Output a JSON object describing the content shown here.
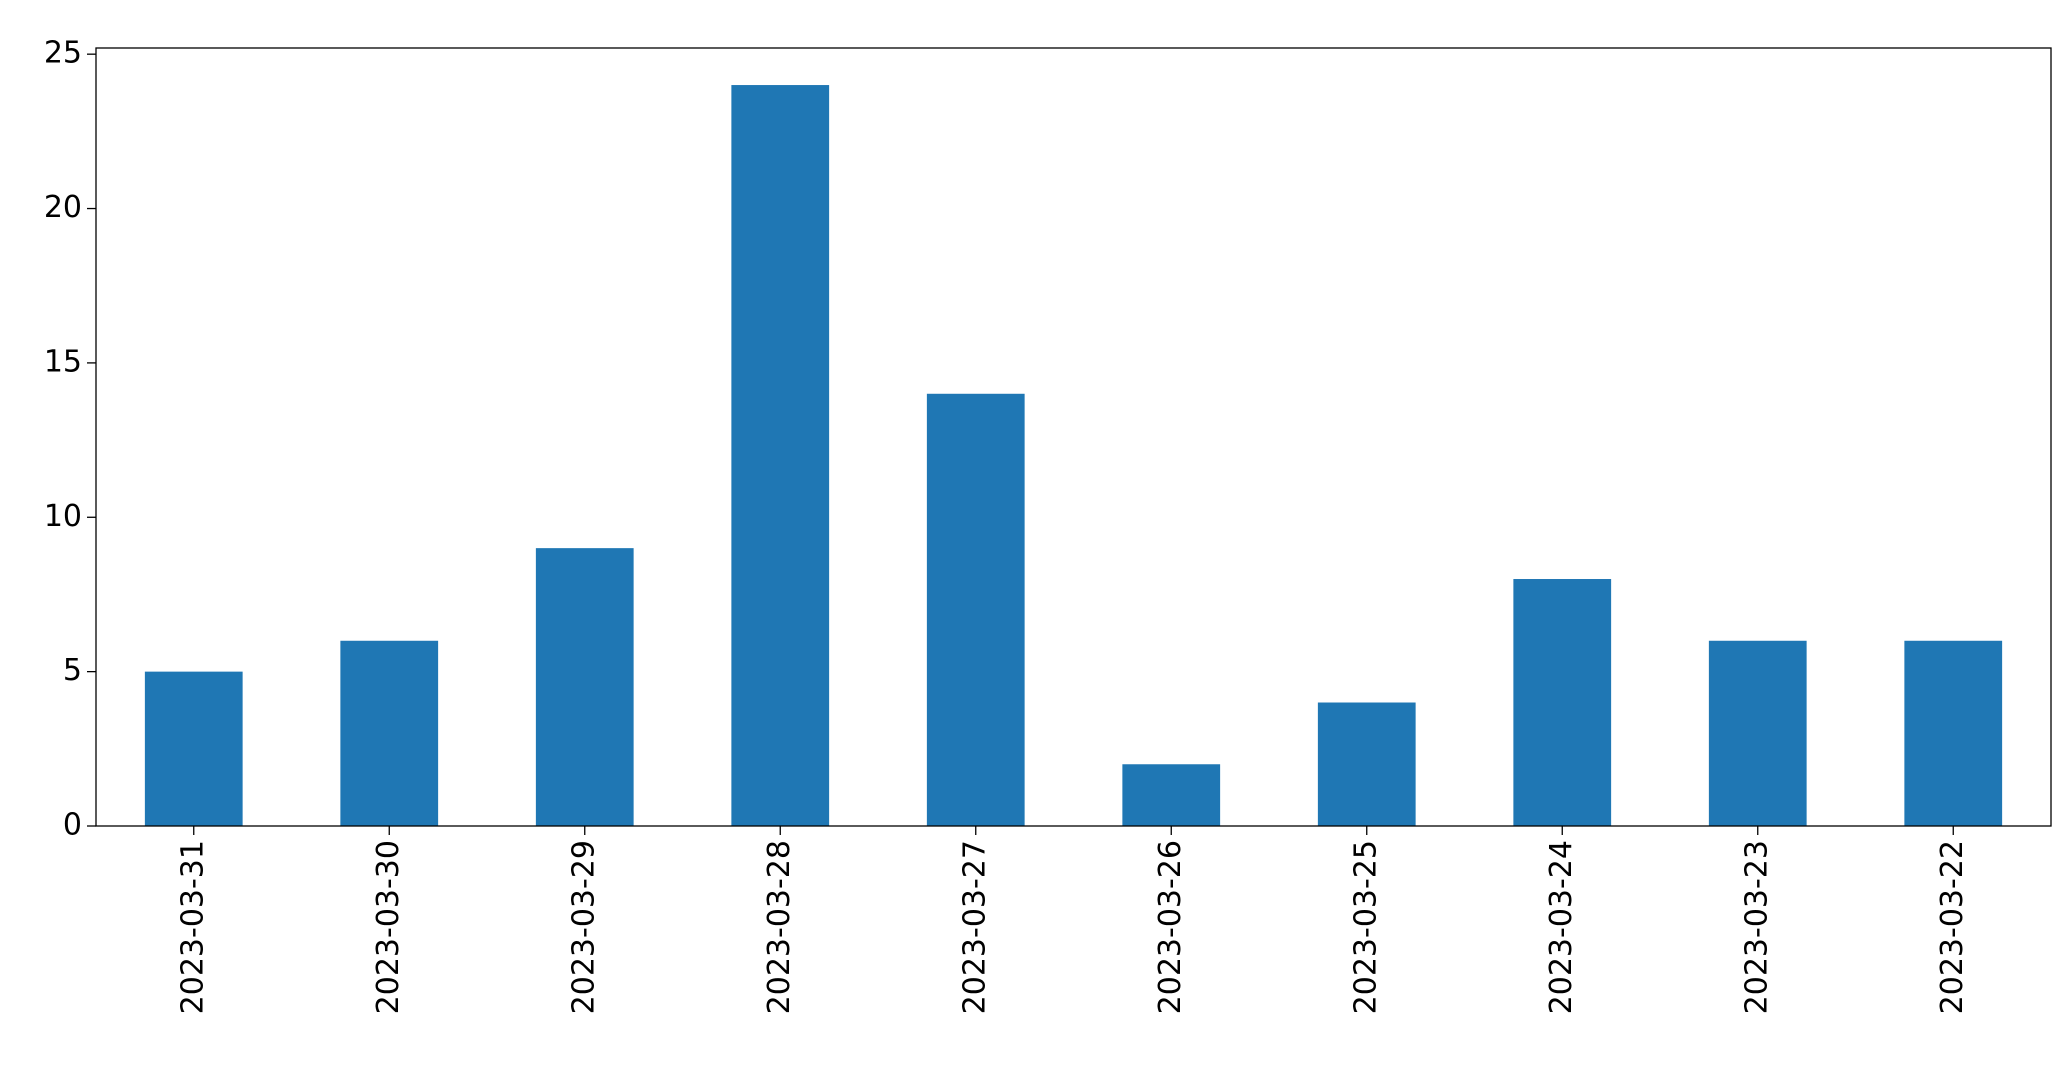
{
  "chart_data": {
    "type": "bar",
    "categories": [
      "2023-03-31",
      "2023-03-30",
      "2023-03-29",
      "2023-03-28",
      "2023-03-27",
      "2023-03-26",
      "2023-03-25",
      "2023-03-24",
      "2023-03-23",
      "2023-03-22"
    ],
    "values": [
      5,
      6,
      9,
      24,
      14,
      2,
      4,
      8,
      6,
      6
    ],
    "color": "#1f77b4",
    "ylim": [
      0,
      25.2
    ],
    "yticks": [
      0,
      5,
      10,
      15,
      20,
      25
    ],
    "grid": false
  }
}
